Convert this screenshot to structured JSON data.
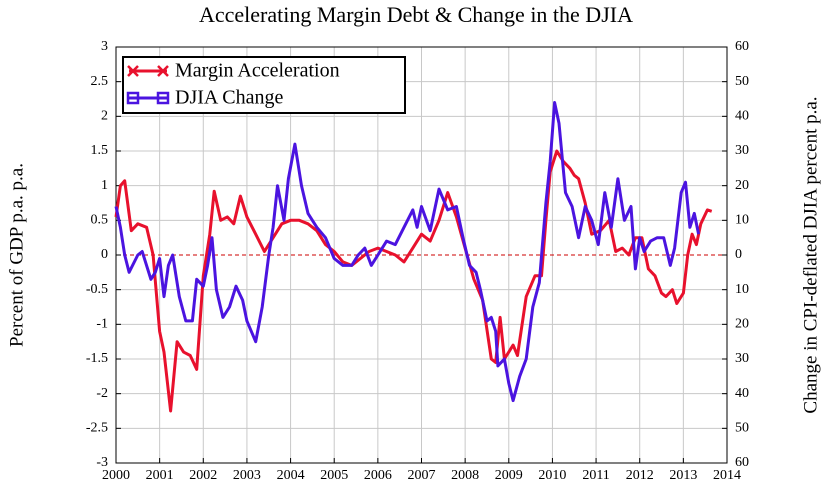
{
  "chart_data": {
    "type": "line",
    "title": "Accelerating Margin Debt & Change in the DJIA",
    "ylabel": "Percent of GDP p.a. p.a.",
    "y2label": "Change in CPI-deflated DJIA percent p.a.",
    "xlim": [
      2000,
      2014
    ],
    "xticks": [
      2000,
      2001,
      2002,
      2003,
      2004,
      2005,
      2006,
      2007,
      2008,
      2009,
      2010,
      2011,
      2012,
      2013,
      2014
    ],
    "ylim": [
      -3,
      3
    ],
    "yticks": [
      -3,
      -2.5,
      -2,
      -1.5,
      -1,
      -0.5,
      0,
      0.5,
      1,
      1.5,
      2,
      2.5,
      3
    ],
    "y2lim": [
      -60,
      60
    ],
    "y2ticks": [
      {
        "value": -60,
        "label": "60"
      },
      {
        "value": -50,
        "label": "50"
      },
      {
        "value": -40,
        "label": "40"
      },
      {
        "value": -30,
        "label": "30"
      },
      {
        "value": -20,
        "label": "20"
      },
      {
        "value": -10,
        "label": "10"
      },
      0,
      10,
      20,
      30,
      40,
      50,
      60
    ],
    "grid": true,
    "legend": "upper left",
    "series": [
      {
        "name": "Margin Acceleration",
        "color": "#e8112d",
        "x": [
          2000.0,
          2000.1,
          2000.2,
          2000.35,
          2000.5,
          2000.7,
          2000.85,
          2001.0,
          2001.1,
          2001.25,
          2001.4,
          2001.55,
          2001.7,
          2001.85,
          2002.0,
          2002.15,
          2002.25,
          2002.4,
          2002.55,
          2002.7,
          2002.85,
          2003.0,
          2003.2,
          2003.4,
          2003.6,
          2003.8,
          2004.0,
          2004.2,
          2004.4,
          2004.6,
          2004.8,
          2005.0,
          2005.2,
          2005.4,
          2005.6,
          2005.8,
          2006.0,
          2006.2,
          2006.4,
          2006.6,
          2006.8,
          2007.0,
          2007.2,
          2007.4,
          2007.6,
          2007.8,
          2008.0,
          2008.2,
          2008.4,
          2008.6,
          2008.7,
          2008.8,
          2008.9,
          2009.1,
          2009.2,
          2009.4,
          2009.6,
          2009.75,
          2009.85,
          2009.95,
          2010.1,
          2010.25,
          2010.4,
          2010.5,
          2010.6,
          2010.75,
          2010.9,
          2011.1,
          2011.3,
          2011.45,
          2011.6,
          2011.75,
          2011.9,
          2012.05,
          2012.2,
          2012.35,
          2012.5,
          2012.6,
          2012.75,
          2012.85,
          2013.0,
          2013.1,
          2013.2,
          2013.3,
          2013.4,
          2013.55,
          2013.65
        ],
        "values": [
          0.55,
          1.0,
          1.07,
          0.35,
          0.45,
          0.4,
          0.0,
          -1.1,
          -1.4,
          -2.25,
          -1.25,
          -1.4,
          -1.45,
          -1.65,
          -0.3,
          0.3,
          0.92,
          0.5,
          0.55,
          0.45,
          0.85,
          0.55,
          0.3,
          0.05,
          0.25,
          0.45,
          0.5,
          0.5,
          0.45,
          0.35,
          0.15,
          0.05,
          -0.1,
          -0.15,
          -0.05,
          0.05,
          0.1,
          0.05,
          0.0,
          -0.1,
          0.1,
          0.3,
          0.2,
          0.5,
          0.9,
          0.55,
          0.1,
          -0.35,
          -0.65,
          -1.5,
          -1.55,
          -0.9,
          -1.5,
          -1.3,
          -1.45,
          -0.6,
          -0.3,
          -0.3,
          0.5,
          1.2,
          1.5,
          1.35,
          1.25,
          1.15,
          1.1,
          0.75,
          0.3,
          0.35,
          0.5,
          0.05,
          0.1,
          0.0,
          0.25,
          0.25,
          -0.2,
          -0.3,
          -0.55,
          -0.6,
          -0.5,
          -0.7,
          -0.55,
          0.0,
          0.3,
          0.15,
          0.45,
          0.65,
          0.63
        ]
      },
      {
        "name": "DJIA Change",
        "color": "#4b14e0",
        "axis": "y2",
        "x": [
          2000.0,
          2000.1,
          2000.2,
          2000.3,
          2000.5,
          2000.6,
          2000.8,
          2000.9,
          2001.0,
          2001.1,
          2001.2,
          2001.3,
          2001.45,
          2001.6,
          2001.75,
          2001.85,
          2002.0,
          2002.1,
          2002.2,
          2002.3,
          2002.45,
          2002.6,
          2002.75,
          2002.9,
          2003.0,
          2003.2,
          2003.35,
          2003.5,
          2003.6,
          2003.7,
          2003.85,
          2003.95,
          2004.1,
          2004.25,
          2004.4,
          2004.6,
          2004.8,
          2005.0,
          2005.2,
          2005.4,
          2005.55,
          2005.7,
          2005.85,
          2006.0,
          2006.2,
          2006.4,
          2006.6,
          2006.8,
          2006.9,
          2007.0,
          2007.2,
          2007.4,
          2007.6,
          2007.8,
          2007.95,
          2008.1,
          2008.25,
          2008.35,
          2008.5,
          2008.6,
          2008.7,
          2008.75,
          2008.9,
          2009.0,
          2009.1,
          2009.25,
          2009.4,
          2009.55,
          2009.7,
          2009.85,
          2009.95,
          2010.05,
          2010.15,
          2010.3,
          2010.45,
          2010.6,
          2010.75,
          2010.9,
          2011.05,
          2011.2,
          2011.35,
          2011.5,
          2011.65,
          2011.8,
          2011.9,
          2012.0,
          2012.1,
          2012.25,
          2012.4,
          2012.55,
          2012.7,
          2012.8,
          2012.95,
          2013.05,
          2013.15,
          2013.25,
          2013.35
        ],
        "values": [
          14,
          8,
          0,
          -5,
          0,
          1,
          -7,
          -5,
          -1,
          -12,
          -3,
          0,
          -12,
          -19,
          -19,
          -7,
          -9,
          -3,
          5,
          -10,
          -18,
          -15,
          -9,
          -13,
          -19,
          -25,
          -15,
          0,
          8,
          20,
          10,
          22,
          32,
          20,
          12,
          8,
          5,
          -1,
          -3,
          -3,
          0,
          2,
          -3,
          0,
          4,
          3,
          8,
          13,
          8,
          14,
          7,
          19,
          13,
          14,
          5,
          -3,
          -5,
          -10,
          -19,
          -18,
          -22,
          -32,
          -30,
          -37,
          -42,
          -35,
          -30,
          -15,
          -8,
          15,
          27,
          44,
          38,
          18,
          14,
          5,
          14,
          10,
          3,
          18,
          8,
          22,
          10,
          14,
          -4,
          5,
          1,
          4,
          5,
          5,
          -3,
          2,
          18,
          21,
          8,
          12,
          6
        ]
      }
    ]
  }
}
